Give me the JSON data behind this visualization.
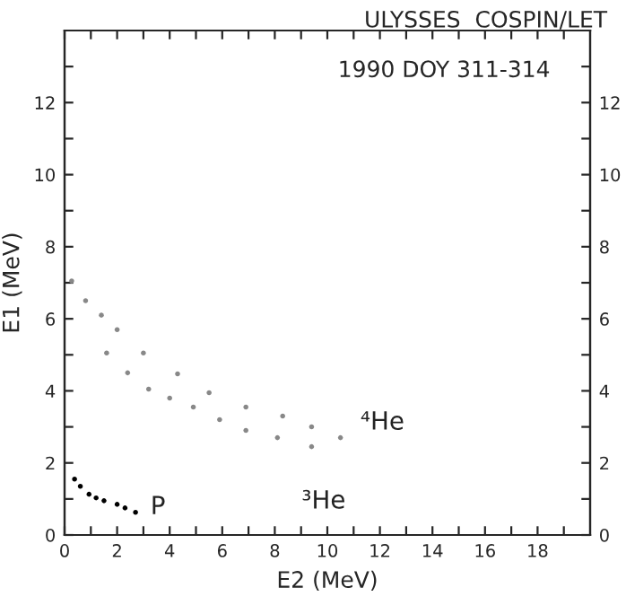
{
  "chart_data": {
    "type": "scatter",
    "title": "ULYSSES  COSPIN/LET",
    "subtitle": "1990 DOY 311-314",
    "xlabel": "E2 (MeV)",
    "ylabel": "E1 (MeV)",
    "xlim": [
      0,
      20
    ],
    "ylim": [
      0,
      14
    ],
    "y2lim": [
      0,
      14
    ],
    "xticks": [
      0,
      {
        "value": 1,
        "label": null
      },
      2,
      {
        "value": 3,
        "label": null
      },
      4,
      {
        "value": 5,
        "label": null
      },
      6,
      {
        "value": 7,
        "label": null
      },
      8,
      {
        "value": 9,
        "label": null
      },
      10,
      {
        "value": 11,
        "label": null
      },
      12,
      {
        "value": 13,
        "label": null
      },
      14,
      {
        "value": 15,
        "label": null
      },
      16,
      {
        "value": 17,
        "label": null
      },
      18,
      {
        "value": 19,
        "label": null
      }
    ],
    "yticks": [
      0,
      {
        "value": 1,
        "label": null
      },
      2,
      {
        "value": 3,
        "label": null
      },
      4,
      {
        "value": 5,
        "label": null
      },
      6,
      {
        "value": 7,
        "label": null
      },
      8,
      {
        "value": 9,
        "label": null
      },
      10,
      {
        "value": 11,
        "label": null
      },
      12,
      {
        "value": 13,
        "label": null
      }
    ],
    "y2ticks": [
      0,
      {
        "value": 1,
        "label": null
      },
      2,
      {
        "value": 3,
        "label": null
      },
      4,
      {
        "value": 5,
        "label": null
      },
      6,
      {
        "value": 7,
        "label": null
      },
      8,
      {
        "value": 9,
        "label": null
      },
      10,
      {
        "value": 11,
        "label": null
      },
      12,
      {
        "value": 13,
        "label": null
      }
    ],
    "marker": "circle",
    "legend": false,
    "grid": false,
    "series": [
      {
        "name": "P",
        "color": "#000000",
        "x": [
          0.38,
          0.6,
          0.93,
          1.2,
          1.5,
          2.0,
          2.3,
          2.7
        ],
        "values": [
          1.55,
          1.35,
          1.13,
          1.03,
          0.95,
          0.85,
          0.75,
          0.63
        ]
      },
      {
        "name": "⁴He",
        "color": "#888888",
        "x": [
          0.27,
          0.8,
          1.4,
          2.0,
          3.0,
          4.3,
          5.5,
          6.9,
          8.3,
          9.4,
          10.5
        ],
        "values": [
          7.05,
          6.5,
          6.1,
          5.7,
          5.05,
          4.47,
          3.95,
          3.55,
          3.3,
          3.0,
          2.7
        ]
      },
      {
        "name": "³He",
        "color": "#888888",
        "x": [
          1.6,
          2.4,
          3.2,
          4.0,
          4.9,
          5.9,
          6.9,
          8.1,
          9.4
        ],
        "values": [
          5.05,
          4.5,
          4.05,
          3.8,
          3.55,
          3.2,
          2.9,
          2.7,
          2.45
        ]
      }
    ]
  }
}
